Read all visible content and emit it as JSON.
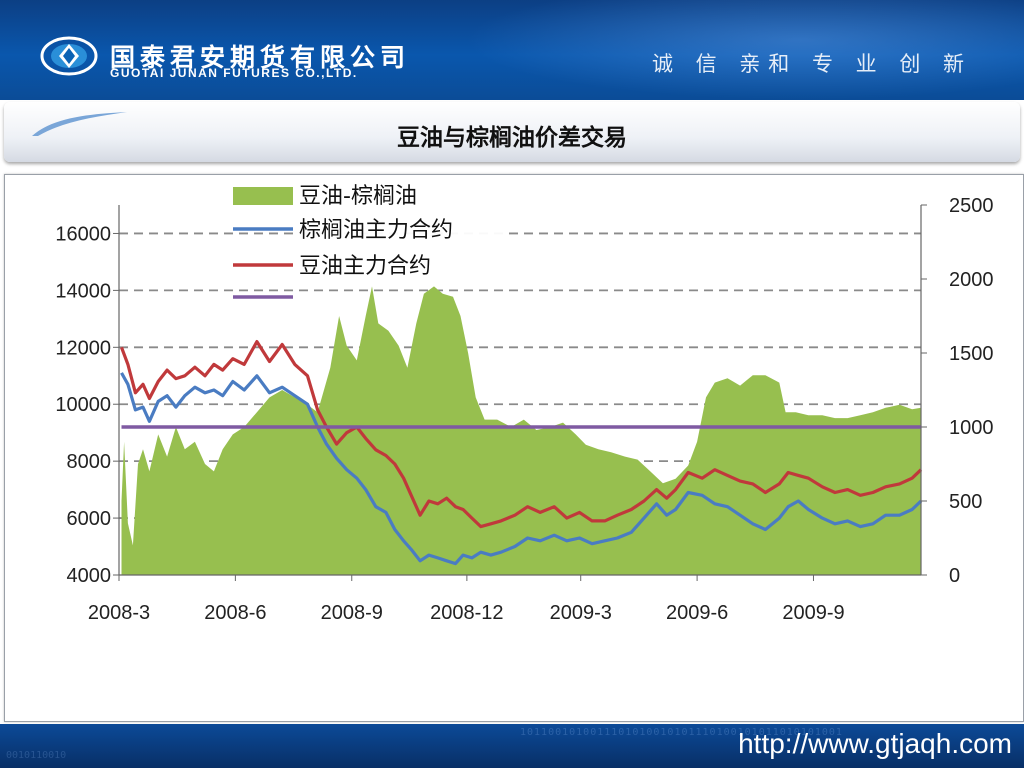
{
  "header": {
    "company_cn": "国泰君安期货有限公司",
    "company_en": "GUOTAI JUNAN FUTURES CO.,LTD.",
    "slogan": "诚 信  亲和  专 业  创 新"
  },
  "slide": {
    "title": "豆油与棕榈油价差交易"
  },
  "footer": {
    "url": "http://www.gtjaqh.com",
    "binary": "1011001010011101010010101110100101011010101001",
    "binary2": "0010110010"
  },
  "colors": {
    "spread": "#97bf4f",
    "palm": "#4a7cc2",
    "soy": "#c0393b",
    "reference": "#7f5aa2",
    "accent_blue": "#0a57ad"
  },
  "chart_data": {
    "type": "line",
    "x_axis": {
      "type": "date",
      "range": [
        "2008-03",
        "2009-11"
      ],
      "tick_labels": [
        "2008-3",
        "2008-6",
        "2008-9",
        "2008-12",
        "2009-3",
        "2009-6",
        "2009-9"
      ],
      "tick_positions": [
        "2008-03",
        "2008-06",
        "2008-09",
        "2008-12",
        "2009-03",
        "2009-06",
        "2009-09"
      ]
    },
    "y_left": {
      "range": [
        4000,
        17000
      ],
      "ticks": [
        4000,
        6000,
        8000,
        10000,
        12000,
        14000,
        16000
      ],
      "tick_labels": [
        "4000",
        "6000",
        "8000",
        "10000",
        "12000",
        "14000",
        "16000"
      ]
    },
    "y_right": {
      "range": [
        0,
        2500
      ],
      "ticks": [
        0,
        500,
        1000,
        1500,
        2000,
        2500
      ],
      "tick_labels": [
        "0",
        "500",
        "1000",
        "1500",
        "2000",
        "2500"
      ]
    },
    "grid": "horizontal-dashed",
    "legend_position": "top-left",
    "series": [
      {
        "name": "豆油-棕榈油",
        "type": "area",
        "axis": "right",
        "color": "#97bf4f",
        "points": [
          [
            "2008-03-03",
            500
          ],
          [
            "2008-03-05",
            900
          ],
          [
            "2008-03-08",
            350
          ],
          [
            "2008-03-12",
            200
          ],
          [
            "2008-03-16",
            750
          ],
          [
            "2008-03-20",
            850
          ],
          [
            "2008-03-25",
            700
          ],
          [
            "2008-04-01",
            950
          ],
          [
            "2008-04-08",
            800
          ],
          [
            "2008-04-15",
            1000
          ],
          [
            "2008-04-22",
            850
          ],
          [
            "2008-04-30",
            900
          ],
          [
            "2008-05-08",
            750
          ],
          [
            "2008-05-15",
            700
          ],
          [
            "2008-05-22",
            850
          ],
          [
            "2008-05-30",
            950
          ],
          [
            "2008-06-08",
            1000
          ],
          [
            "2008-06-18",
            1100
          ],
          [
            "2008-06-28",
            1200
          ],
          [
            "2008-07-08",
            1250
          ],
          [
            "2008-07-18",
            1200
          ],
          [
            "2008-07-28",
            1150
          ],
          [
            "2008-08-05",
            1100
          ],
          [
            "2008-08-15",
            1400
          ],
          [
            "2008-08-22",
            1750
          ],
          [
            "2008-08-28",
            1550
          ],
          [
            "2008-09-05",
            1450
          ],
          [
            "2008-09-12",
            1750
          ],
          [
            "2008-09-17",
            1950
          ],
          [
            "2008-09-22",
            1700
          ],
          [
            "2008-09-30",
            1650
          ],
          [
            "2008-10-08",
            1550
          ],
          [
            "2008-10-15",
            1400
          ],
          [
            "2008-10-22",
            1700
          ],
          [
            "2008-10-28",
            1900
          ],
          [
            "2008-11-05",
            1950
          ],
          [
            "2008-11-12",
            1900
          ],
          [
            "2008-11-20",
            1880
          ],
          [
            "2008-11-26",
            1750
          ],
          [
            "2008-12-02",
            1500
          ],
          [
            "2008-12-08",
            1200
          ],
          [
            "2008-12-15",
            1050
          ],
          [
            "2008-12-25",
            1050
          ],
          [
            "2009-01-05",
            1000
          ],
          [
            "2009-01-15",
            1050
          ],
          [
            "2009-01-25",
            980
          ],
          [
            "2009-02-05",
            1000
          ],
          [
            "2009-02-15",
            1030
          ],
          [
            "2009-02-25",
            950
          ],
          [
            "2009-03-05",
            880
          ],
          [
            "2009-03-15",
            850
          ],
          [
            "2009-03-25",
            830
          ],
          [
            "2009-04-05",
            800
          ],
          [
            "2009-04-15",
            780
          ],
          [
            "2009-04-25",
            700
          ],
          [
            "2009-05-05",
            620
          ],
          [
            "2009-05-15",
            650
          ],
          [
            "2009-05-25",
            740
          ],
          [
            "2009-06-01",
            900
          ],
          [
            "2009-06-08",
            1200
          ],
          [
            "2009-06-15",
            1300
          ],
          [
            "2009-06-25",
            1330
          ],
          [
            "2009-07-05",
            1280
          ],
          [
            "2009-07-15",
            1350
          ],
          [
            "2009-07-25",
            1350
          ],
          [
            "2009-08-05",
            1300
          ],
          [
            "2009-08-10",
            1100
          ],
          [
            "2009-08-18",
            1100
          ],
          [
            "2009-08-28",
            1080
          ],
          [
            "2009-09-08",
            1080
          ],
          [
            "2009-09-18",
            1060
          ],
          [
            "2009-09-28",
            1060
          ],
          [
            "2009-10-08",
            1080
          ],
          [
            "2009-10-18",
            1100
          ],
          [
            "2009-10-28",
            1130
          ],
          [
            "2009-11-08",
            1150
          ],
          [
            "2009-11-18",
            1120
          ],
          [
            "2009-11-25",
            1130
          ]
        ]
      },
      {
        "name": "棕榈油主力合约",
        "type": "line",
        "axis": "left",
        "color": "#4a7cc2",
        "points": [
          [
            "2008-03-03",
            11100
          ],
          [
            "2008-03-08",
            10700
          ],
          [
            "2008-03-14",
            9800
          ],
          [
            "2008-03-20",
            9900
          ],
          [
            "2008-03-25",
            9400
          ],
          [
            "2008-04-01",
            10100
          ],
          [
            "2008-04-08",
            10300
          ],
          [
            "2008-04-15",
            9900
          ],
          [
            "2008-04-22",
            10300
          ],
          [
            "2008-04-30",
            10600
          ],
          [
            "2008-05-08",
            10400
          ],
          [
            "2008-05-15",
            10500
          ],
          [
            "2008-05-22",
            10300
          ],
          [
            "2008-05-30",
            10800
          ],
          [
            "2008-06-08",
            10500
          ],
          [
            "2008-06-18",
            11000
          ],
          [
            "2008-06-28",
            10400
          ],
          [
            "2008-07-08",
            10600
          ],
          [
            "2008-07-18",
            10300
          ],
          [
            "2008-07-28",
            10000
          ],
          [
            "2008-08-05",
            9200
          ],
          [
            "2008-08-12",
            8600
          ],
          [
            "2008-08-20",
            8100
          ],
          [
            "2008-08-28",
            7700
          ],
          [
            "2008-09-05",
            7400
          ],
          [
            "2008-09-12",
            7000
          ],
          [
            "2008-09-20",
            6400
          ],
          [
            "2008-09-28",
            6200
          ],
          [
            "2008-10-05",
            5600
          ],
          [
            "2008-10-12",
            5200
          ],
          [
            "2008-10-18",
            4900
          ],
          [
            "2008-10-25",
            4500
          ],
          [
            "2008-11-01",
            4700
          ],
          [
            "2008-11-08",
            4600
          ],
          [
            "2008-11-15",
            4500
          ],
          [
            "2008-11-22",
            4400
          ],
          [
            "2008-11-28",
            4700
          ],
          [
            "2008-12-05",
            4600
          ],
          [
            "2008-12-12",
            4800
          ],
          [
            "2008-12-20",
            4700
          ],
          [
            "2008-12-28",
            4800
          ],
          [
            "2009-01-08",
            5000
          ],
          [
            "2009-01-18",
            5300
          ],
          [
            "2009-01-28",
            5200
          ],
          [
            "2009-02-08",
            5400
          ],
          [
            "2009-02-18",
            5200
          ],
          [
            "2009-02-28",
            5300
          ],
          [
            "2009-03-10",
            5100
          ],
          [
            "2009-03-20",
            5200
          ],
          [
            "2009-03-30",
            5300
          ],
          [
            "2009-04-10",
            5500
          ],
          [
            "2009-04-20",
            6000
          ],
          [
            "2009-04-30",
            6500
          ],
          [
            "2009-05-08",
            6100
          ],
          [
            "2009-05-15",
            6300
          ],
          [
            "2009-05-25",
            6900
          ],
          [
            "2009-06-05",
            6800
          ],
          [
            "2009-06-15",
            6500
          ],
          [
            "2009-06-25",
            6400
          ],
          [
            "2009-07-05",
            6100
          ],
          [
            "2009-07-15",
            5800
          ],
          [
            "2009-07-25",
            5600
          ],
          [
            "2009-08-05",
            6000
          ],
          [
            "2009-08-12",
            6400
          ],
          [
            "2009-08-20",
            6600
          ],
          [
            "2009-08-28",
            6300
          ],
          [
            "2009-09-08",
            6000
          ],
          [
            "2009-09-18",
            5800
          ],
          [
            "2009-09-28",
            5900
          ],
          [
            "2009-10-08",
            5700
          ],
          [
            "2009-10-18",
            5800
          ],
          [
            "2009-10-28",
            6100
          ],
          [
            "2009-11-08",
            6100
          ],
          [
            "2009-11-18",
            6300
          ],
          [
            "2009-11-25",
            6600
          ]
        ]
      },
      {
        "name": "豆油主力合约",
        "type": "line",
        "axis": "left",
        "color": "#c0393b",
        "points": [
          [
            "2008-03-03",
            12000
          ],
          [
            "2008-03-08",
            11400
          ],
          [
            "2008-03-14",
            10400
          ],
          [
            "2008-03-20",
            10700
          ],
          [
            "2008-03-25",
            10200
          ],
          [
            "2008-04-01",
            10800
          ],
          [
            "2008-04-08",
            11200
          ],
          [
            "2008-04-15",
            10900
          ],
          [
            "2008-04-22",
            11000
          ],
          [
            "2008-04-30",
            11300
          ],
          [
            "2008-05-08",
            11000
          ],
          [
            "2008-05-15",
            11400
          ],
          [
            "2008-05-22",
            11200
          ],
          [
            "2008-05-30",
            11600
          ],
          [
            "2008-06-08",
            11400
          ],
          [
            "2008-06-18",
            12200
          ],
          [
            "2008-06-28",
            11500
          ],
          [
            "2008-07-08",
            12100
          ],
          [
            "2008-07-18",
            11400
          ],
          [
            "2008-07-28",
            11000
          ],
          [
            "2008-08-05",
            9800
          ],
          [
            "2008-08-12",
            9200
          ],
          [
            "2008-08-20",
            8600
          ],
          [
            "2008-08-28",
            9000
          ],
          [
            "2008-09-05",
            9200
          ],
          [
            "2008-09-12",
            8800
          ],
          [
            "2008-09-20",
            8400
          ],
          [
            "2008-09-28",
            8200
          ],
          [
            "2008-10-05",
            7900
          ],
          [
            "2008-10-12",
            7400
          ],
          [
            "2008-10-18",
            6800
          ],
          [
            "2008-10-25",
            6100
          ],
          [
            "2008-11-01",
            6600
          ],
          [
            "2008-11-08",
            6500
          ],
          [
            "2008-11-15",
            6700
          ],
          [
            "2008-11-22",
            6400
          ],
          [
            "2008-11-28",
            6300
          ],
          [
            "2008-12-05",
            6000
          ],
          [
            "2008-12-12",
            5700
          ],
          [
            "2008-12-20",
            5800
          ],
          [
            "2008-12-28",
            5900
          ],
          [
            "2009-01-08",
            6100
          ],
          [
            "2009-01-18",
            6400
          ],
          [
            "2009-01-28",
            6200
          ],
          [
            "2009-02-08",
            6400
          ],
          [
            "2009-02-18",
            6000
          ],
          [
            "2009-02-28",
            6200
          ],
          [
            "2009-03-10",
            5900
          ],
          [
            "2009-03-20",
            5900
          ],
          [
            "2009-03-30",
            6100
          ],
          [
            "2009-04-10",
            6300
          ],
          [
            "2009-04-20",
            6600
          ],
          [
            "2009-04-30",
            7000
          ],
          [
            "2009-05-08",
            6700
          ],
          [
            "2009-05-15",
            7000
          ],
          [
            "2009-05-25",
            7600
          ],
          [
            "2009-06-05",
            7400
          ],
          [
            "2009-06-15",
            7700
          ],
          [
            "2009-06-25",
            7500
          ],
          [
            "2009-07-05",
            7300
          ],
          [
            "2009-07-15",
            7200
          ],
          [
            "2009-07-25",
            6900
          ],
          [
            "2009-08-05",
            7200
          ],
          [
            "2009-08-12",
            7600
          ],
          [
            "2009-08-20",
            7500
          ],
          [
            "2009-08-28",
            7400
          ],
          [
            "2009-09-08",
            7100
          ],
          [
            "2009-09-18",
            6900
          ],
          [
            "2009-09-28",
            7000
          ],
          [
            "2009-10-08",
            6800
          ],
          [
            "2009-10-18",
            6900
          ],
          [
            "2009-10-28",
            7100
          ],
          [
            "2009-11-08",
            7200
          ],
          [
            "2009-11-18",
            7400
          ],
          [
            "2009-11-25",
            7700
          ]
        ]
      },
      {
        "name": "",
        "type": "line",
        "axis": "right",
        "color": "#7f5aa2",
        "points": [
          [
            "2008-03-03",
            1000
          ],
          [
            "2009-11-25",
            1000
          ]
        ]
      }
    ]
  }
}
